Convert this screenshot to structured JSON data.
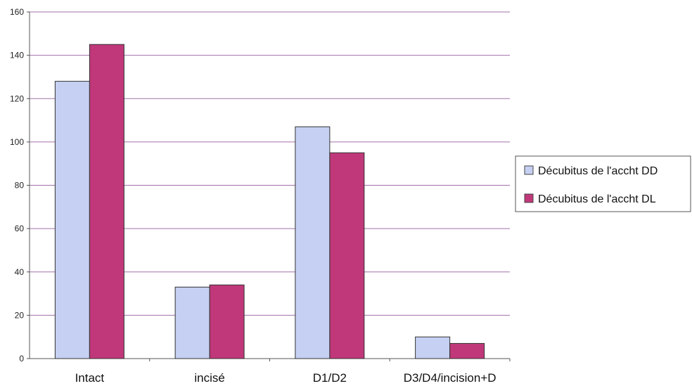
{
  "chart_data": {
    "type": "bar",
    "categories": [
      "Intact",
      "incisé",
      "D1/D2",
      "D3/D4/incision+D"
    ],
    "series": [
      {
        "name": "Décubitus de l'accht DD",
        "values": [
          128,
          33,
          107,
          10
        ],
        "color": "#c5d0f2"
      },
      {
        "name": "Décubitus de l'accht DL",
        "values": [
          145,
          34,
          95,
          7
        ],
        "color": "#c0387a"
      }
    ],
    "ylim": [
      0,
      160
    ],
    "yticks": [
      0,
      20,
      40,
      60,
      80,
      100,
      120,
      140,
      160
    ],
    "grid": true,
    "grid_color": "#a070a8",
    "legend_position": "right"
  }
}
